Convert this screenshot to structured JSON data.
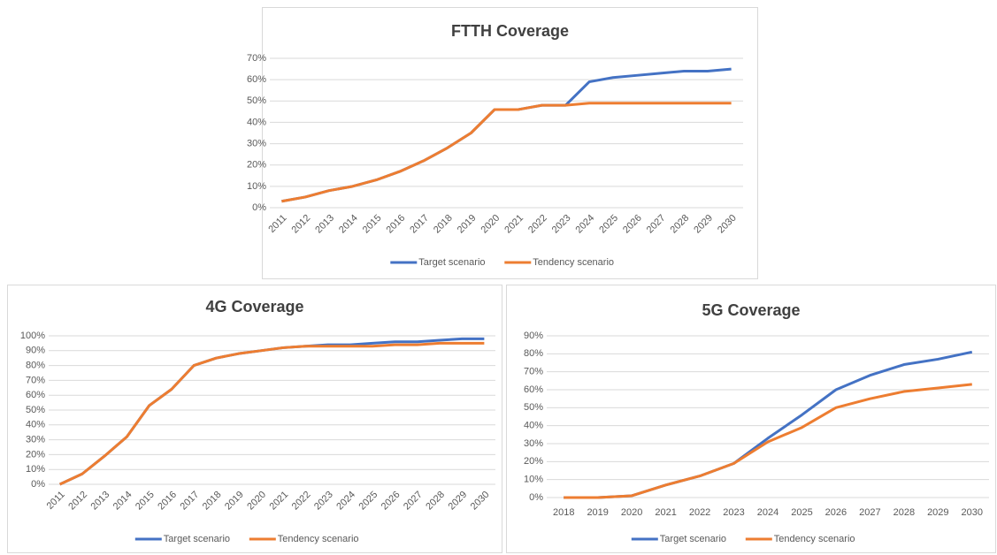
{
  "chart_data": [
    {
      "type": "line",
      "title": "FTTH Coverage",
      "categories": [
        "2011",
        "2012",
        "2013",
        "2014",
        "2015",
        "2016",
        "2017",
        "2018",
        "2019",
        "2020",
        "2021",
        "2022",
        "2023",
        "2024",
        "2025",
        "2026",
        "2027",
        "2028",
        "2029",
        "2030"
      ],
      "series": [
        {
          "name": "Target scenario",
          "color": "#4472c4",
          "values": [
            3,
            5,
            8,
            10,
            13,
            17,
            22,
            28,
            35,
            46,
            46,
            48,
            48,
            59,
            61,
            62,
            63,
            64,
            64,
            65
          ]
        },
        {
          "name": "Tendency scenario",
          "color": "#ed7d31",
          "values": [
            3,
            5,
            8,
            10,
            13,
            17,
            22,
            28,
            35,
            46,
            46,
            48,
            48,
            49,
            49,
            49,
            49,
            49,
            49,
            49
          ]
        }
      ],
      "ylim": [
        0,
        70
      ],
      "yticks": [
        {
          "value": 0,
          "label": "0%"
        },
        {
          "value": 10,
          "label": "10%"
        },
        {
          "value": 20,
          "label": "20%"
        },
        {
          "value": 30,
          "label": "30%"
        },
        {
          "value": 40,
          "label": "40%"
        },
        {
          "value": 50,
          "label": "50%"
        },
        {
          "value": 60,
          "label": "60%"
        },
        {
          "value": 70,
          "label": "70%"
        }
      ],
      "grid": true,
      "legend": "bottom"
    },
    {
      "type": "line",
      "title": "4G Coverage",
      "categories": [
        "2011",
        "2012",
        "2013",
        "2014",
        "2015",
        "2016",
        "2017",
        "2018",
        "2019",
        "2020",
        "2021",
        "2022",
        "2023",
        "2024",
        "2025",
        "2026",
        "2027",
        "2028",
        "2029",
        "2030"
      ],
      "series": [
        {
          "name": "Target scenario",
          "color": "#4472c4",
          "values": [
            0,
            7,
            19,
            32,
            53,
            64,
            80,
            85,
            88,
            90,
            92,
            93,
            94,
            94,
            95,
            96,
            96,
            97,
            98,
            98
          ]
        },
        {
          "name": "Tendency scenario",
          "color": "#ed7d31",
          "values": [
            0,
            7,
            19,
            32,
            53,
            64,
            80,
            85,
            88,
            90,
            92,
            93,
            93,
            93,
            93,
            94,
            94,
            95,
            95,
            95
          ]
        }
      ],
      "ylim": [
        0,
        100
      ],
      "yticks": [
        {
          "value": 0,
          "label": "0%"
        },
        {
          "value": 10,
          "label": "10%"
        },
        {
          "value": 20,
          "label": "20%"
        },
        {
          "value": 30,
          "label": "30%"
        },
        {
          "value": 40,
          "label": "40%"
        },
        {
          "value": 50,
          "label": "50%"
        },
        {
          "value": 60,
          "label": "60%"
        },
        {
          "value": 70,
          "label": "70%"
        },
        {
          "value": 80,
          "label": "80%"
        },
        {
          "value": 90,
          "label": "90%"
        },
        {
          "value": 100,
          "label": "100%"
        }
      ],
      "grid": true,
      "legend": "bottom"
    },
    {
      "type": "line",
      "title": "5G Coverage",
      "categories": [
        "2018",
        "2019",
        "2020",
        "2021",
        "2022",
        "2023",
        "2024",
        "2025",
        "2026",
        "2027",
        "2028",
        "2029",
        "2030"
      ],
      "series": [
        {
          "name": "Target scenario",
          "color": "#4472c4",
          "values": [
            0,
            0,
            1,
            7,
            12,
            19,
            33,
            46,
            60,
            68,
            74,
            77,
            81
          ]
        },
        {
          "name": "Tendency scenario",
          "color": "#ed7d31",
          "values": [
            0,
            0,
            1,
            7,
            12,
            19,
            31,
            39,
            50,
            55,
            59,
            61,
            63
          ]
        }
      ],
      "ylim": [
        0,
        90
      ],
      "yticks": [
        {
          "value": 0,
          "label": "0%"
        },
        {
          "value": 10,
          "label": "10%"
        },
        {
          "value": 20,
          "label": "20%"
        },
        {
          "value": 30,
          "label": "30%"
        },
        {
          "value": 40,
          "label": "40%"
        },
        {
          "value": 50,
          "label": "50%"
        },
        {
          "value": 60,
          "label": "60%"
        },
        {
          "value": 70,
          "label": "70%"
        },
        {
          "value": 80,
          "label": "80%"
        },
        {
          "value": 90,
          "label": "90%"
        }
      ],
      "grid": true,
      "legend": "bottom"
    }
  ]
}
